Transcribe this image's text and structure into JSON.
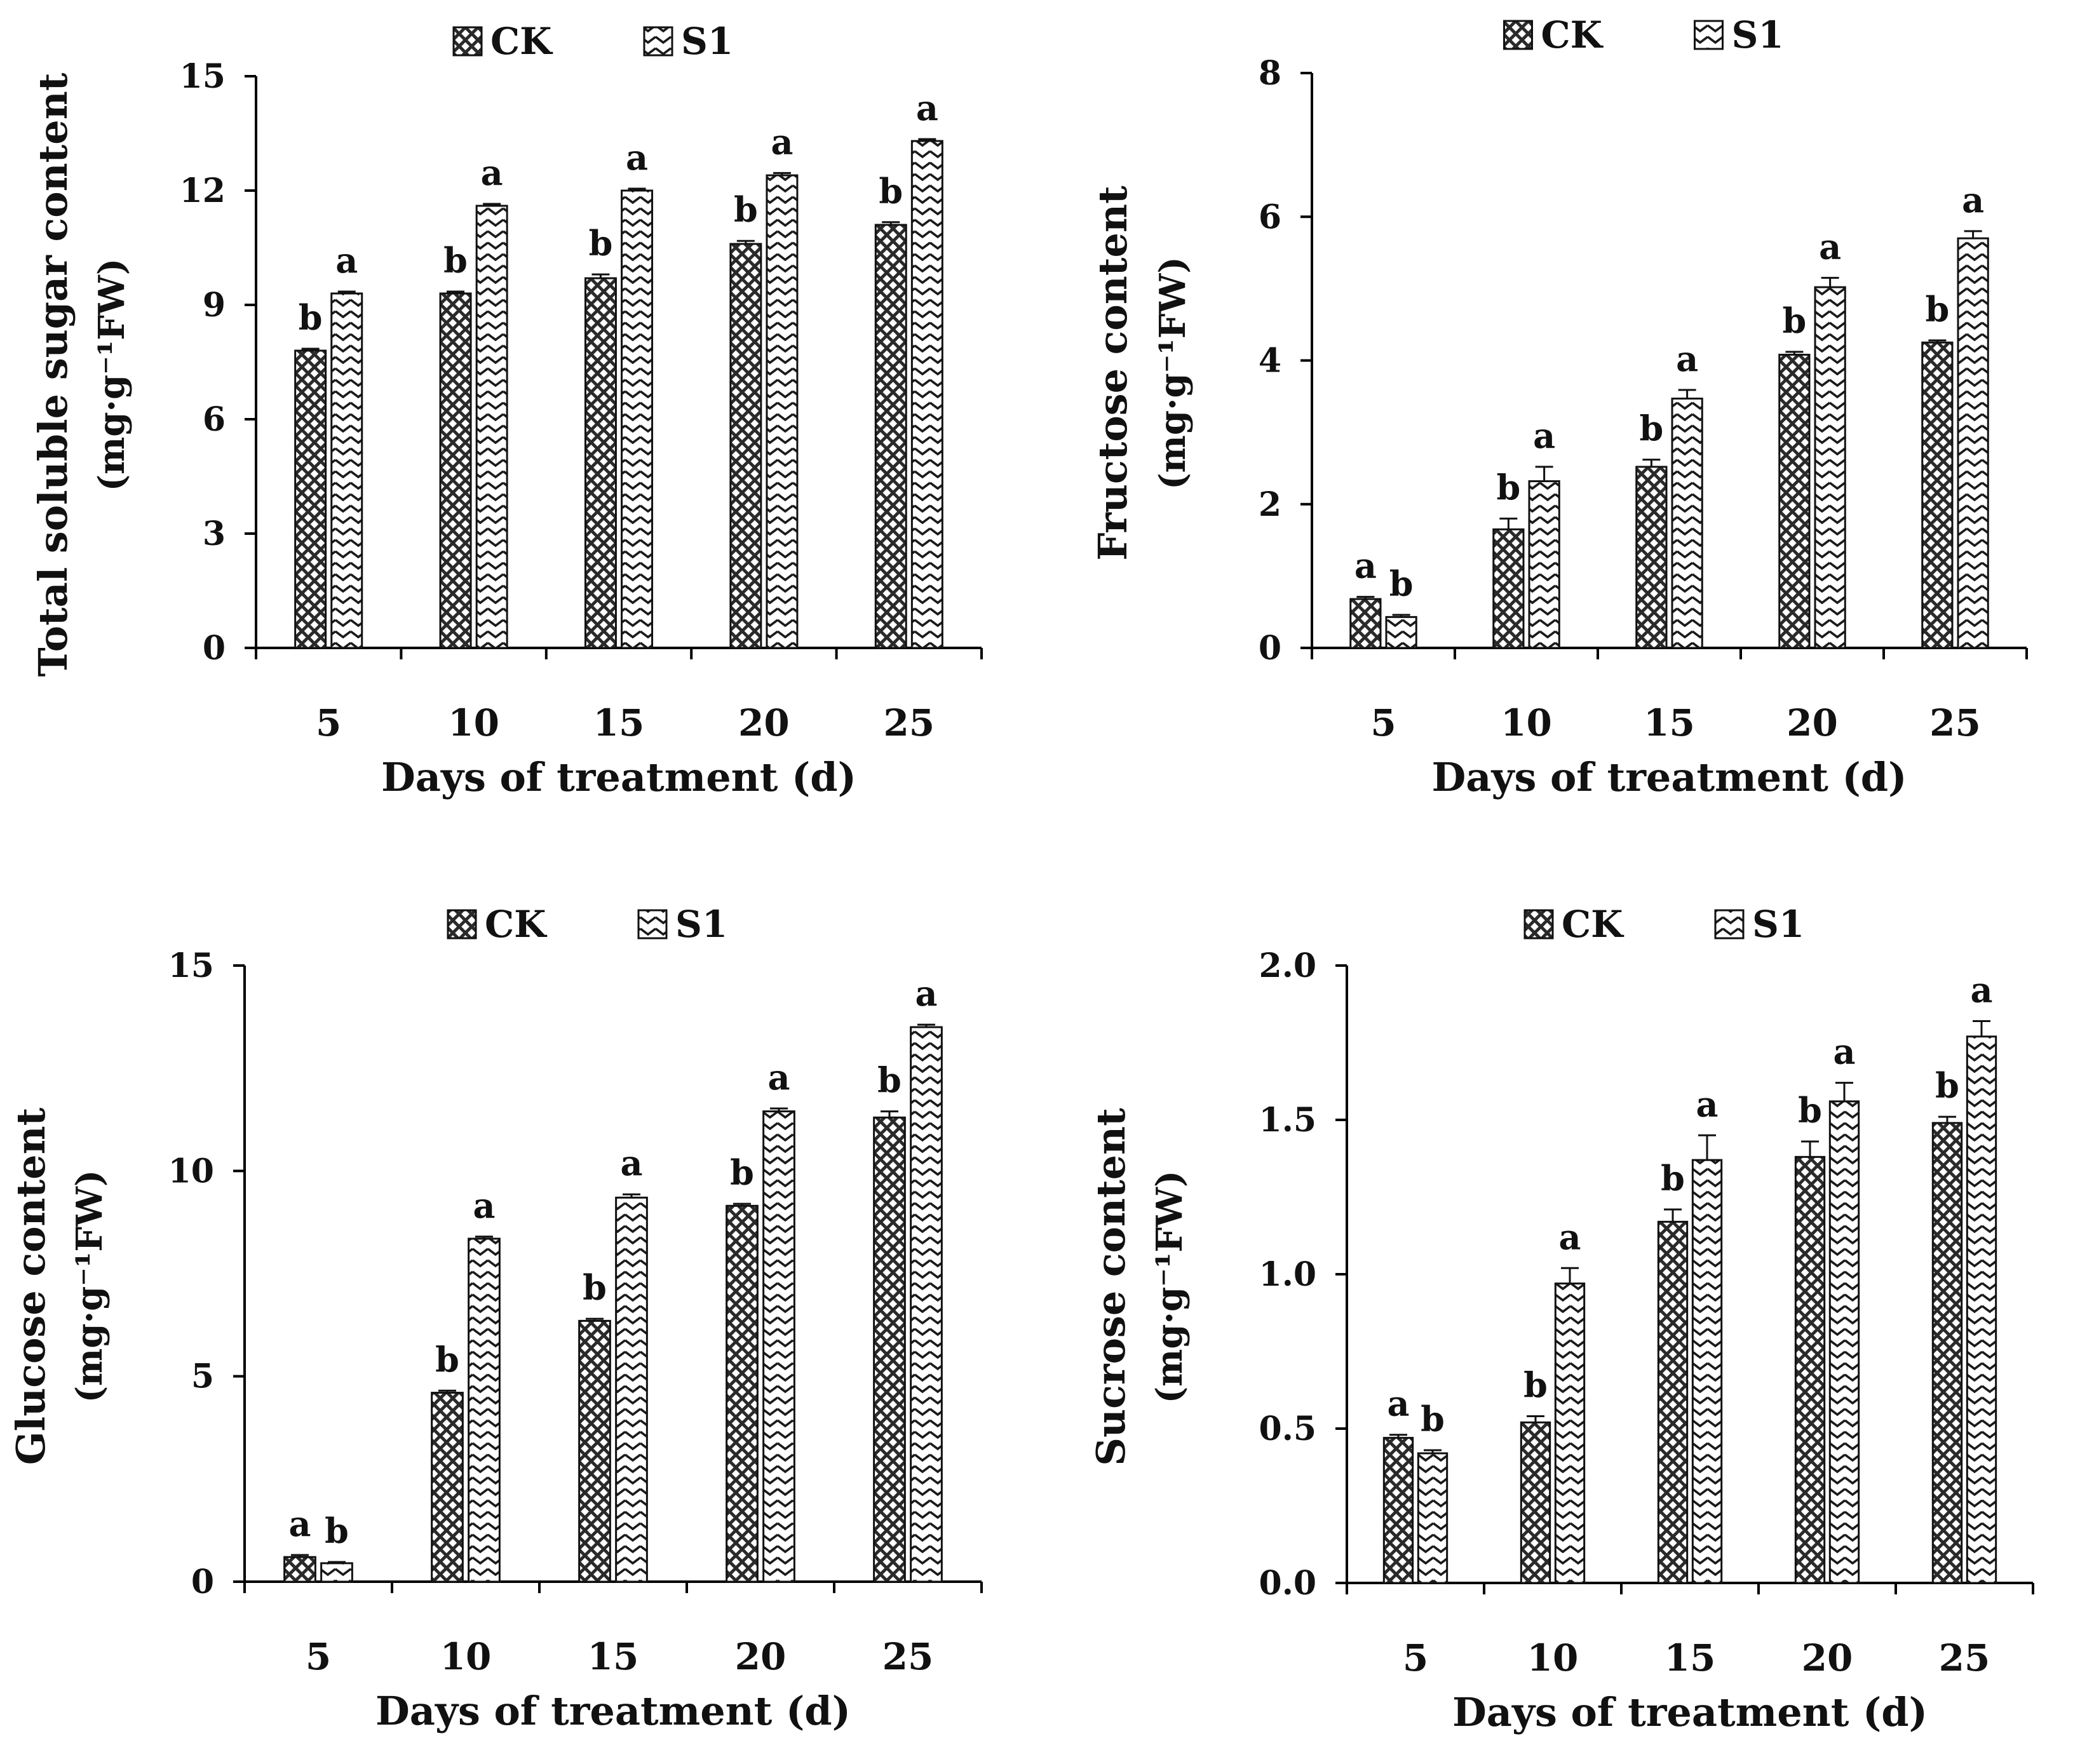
{
  "chart_data": [
    {
      "type": "bar",
      "id": "total-soluble-sugar",
      "title": "",
      "xlabel": "Days of treatment (d)",
      "ylabel": "Total soluble sugar content",
      "yunit": "(mg·g⁻¹FW)",
      "categories": [
        "5",
        "10",
        "15",
        "20",
        "25"
      ],
      "ylim": [
        0,
        15
      ],
      "yticks": [
        0,
        3,
        6,
        9,
        12,
        15
      ],
      "ytick_labels": [
        "0",
        "3",
        "6",
        "9",
        "12",
        "15"
      ],
      "legend": [
        "CK",
        "S1"
      ],
      "legend_position": "top-center",
      "series": [
        {
          "name": "CK",
          "values": [
            7.8,
            9.3,
            9.7,
            10.6,
            11.1
          ],
          "errors": [
            0.05,
            0.05,
            0.1,
            0.08,
            0.07
          ],
          "letters": [
            "b",
            "b",
            "b",
            "b",
            "b"
          ]
        },
        {
          "name": "S1",
          "values": [
            9.3,
            11.6,
            12.0,
            12.4,
            13.3
          ],
          "errors": [
            0.05,
            0.05,
            0.05,
            0.06,
            0.05
          ],
          "letters": [
            "a",
            "a",
            "a",
            "a",
            "a"
          ]
        }
      ]
    },
    {
      "type": "bar",
      "id": "fructose",
      "title": "",
      "xlabel": "Days of treatment (d)",
      "ylabel": "Fructose content",
      "yunit": "(mg·g⁻¹FW)",
      "categories": [
        "5",
        "10",
        "15",
        "20",
        "25"
      ],
      "ylim": [
        0,
        8
      ],
      "yticks": [
        0,
        2,
        4,
        6,
        8
      ],
      "ytick_labels": [
        "0",
        "2",
        "4",
        "6",
        "8"
      ],
      "legend": [
        "CK",
        "S1"
      ],
      "legend_position": "top-center",
      "series": [
        {
          "name": "CK",
          "values": [
            0.68,
            1.65,
            2.52,
            4.08,
            4.25
          ],
          "errors": [
            0.03,
            0.15,
            0.1,
            0.04,
            0.03
          ],
          "letters": [
            "a",
            "b",
            "b",
            "b",
            "b"
          ]
        },
        {
          "name": "S1",
          "values": [
            0.43,
            2.32,
            3.47,
            5.02,
            5.7
          ],
          "errors": [
            0.03,
            0.2,
            0.12,
            0.13,
            0.1
          ],
          "letters": [
            "b",
            "a",
            "a",
            "a",
            "a"
          ]
        }
      ]
    },
    {
      "type": "bar",
      "id": "glucose",
      "title": "",
      "xlabel": "Days of treatment (d)",
      "ylabel": "Glucose content",
      "yunit": "(mg·g⁻¹FW)",
      "categories": [
        "5",
        "10",
        "15",
        "20",
        "25"
      ],
      "ylim": [
        0,
        15
      ],
      "yticks": [
        0,
        5,
        10,
        15
      ],
      "ytick_labels": [
        "0",
        "5",
        "10",
        "15"
      ],
      "legend": [
        "CK",
        "S1"
      ],
      "legend_position": "top-center",
      "series": [
        {
          "name": "CK",
          "values": [
            0.6,
            4.6,
            6.35,
            9.15,
            11.3
          ],
          "errors": [
            0.05,
            0.05,
            0.05,
            0.05,
            0.15
          ],
          "letters": [
            "a",
            "b",
            "b",
            "b",
            "b"
          ]
        },
        {
          "name": "S1",
          "values": [
            0.45,
            8.35,
            9.35,
            11.45,
            13.5
          ],
          "errors": [
            0.03,
            0.05,
            0.08,
            0.07,
            0.06
          ],
          "letters": [
            "b",
            "a",
            "a",
            "a",
            "a"
          ]
        }
      ]
    },
    {
      "type": "bar",
      "id": "sucrose",
      "title": "",
      "xlabel": "Days of treatment (d)",
      "ylabel": "Sucrose content",
      "yunit": "(mg·g⁻¹FW)",
      "categories": [
        "5",
        "10",
        "15",
        "20",
        "25"
      ],
      "ylim": [
        0,
        2.0
      ],
      "yticks": [
        0,
        0.5,
        1.0,
        1.5,
        2.0
      ],
      "ytick_labels": [
        "0.0",
        "0.5",
        "1.0",
        "1.5",
        "2.0"
      ],
      "legend": [
        "CK",
        "S1"
      ],
      "legend_position": "top-center",
      "series": [
        {
          "name": "CK",
          "values": [
            0.47,
            0.52,
            1.17,
            1.38,
            1.49
          ],
          "errors": [
            0.01,
            0.02,
            0.04,
            0.05,
            0.02
          ],
          "letters": [
            "a",
            "b",
            "b",
            "b",
            "b"
          ]
        },
        {
          "name": "S1",
          "values": [
            0.42,
            0.97,
            1.37,
            1.56,
            1.77
          ],
          "errors": [
            0.01,
            0.05,
            0.08,
            0.06,
            0.05
          ],
          "letters": [
            "b",
            "a",
            "a",
            "a",
            "a"
          ]
        }
      ]
    }
  ]
}
